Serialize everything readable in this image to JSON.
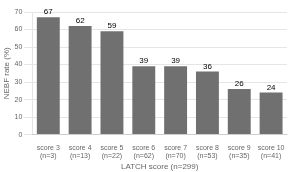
{
  "chart_data": {
    "type": "bar",
    "categories": [
      "score 3\n(n=3)",
      "score 4\n(n=13)",
      "score 5\n(n=22)",
      "score 6\n(n=62)",
      "score 7\n(n=70)",
      "score 8\n(n=53)",
      "score 9\n(n=35)",
      "score 10\n(n=41)"
    ],
    "values": [
      67,
      62,
      59,
      39,
      39,
      36,
      26,
      24
    ],
    "color": "#707070",
    "xlabel": "LATCH score (n=299)",
    "ylabel": "NEBF rate (%)",
    "ylim": [
      0,
      70
    ],
    "yticks": [
      0,
      10,
      20,
      30,
      40,
      50,
      60,
      70
    ],
    "grid": true,
    "data_labels": true
  }
}
